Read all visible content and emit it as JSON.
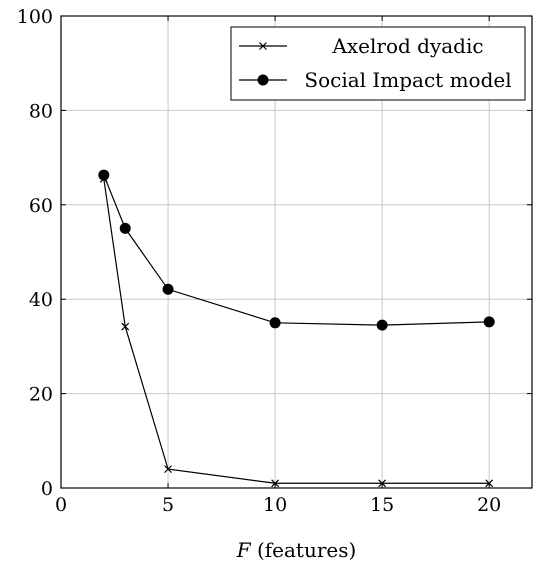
{
  "chart_data": {
    "type": "line",
    "xlabel_var": "F",
    "xlabel_text": " (features)",
    "ylabel": "",
    "xlim": [
      0,
      22
    ],
    "ylim": [
      0,
      100
    ],
    "xticks": [
      0,
      5,
      10,
      15,
      20
    ],
    "yticks": [
      0,
      20,
      40,
      60,
      80,
      100
    ],
    "grid": true,
    "legend_position": "top-right",
    "series": [
      {
        "name": "Axelrod dyadic",
        "marker": "x",
        "color": "#000000",
        "x": [
          2,
          3,
          5,
          10,
          15,
          20
        ],
        "y": [
          65.5,
          34.2,
          4.0,
          1.0,
          1.0,
          1.0
        ]
      },
      {
        "name": "Social Impact model",
        "marker": "circle",
        "color": "#000000",
        "x": [
          2,
          3,
          5,
          10,
          15,
          20
        ],
        "y": [
          66.3,
          55.0,
          42.1,
          35.0,
          34.5,
          35.2
        ]
      }
    ]
  }
}
